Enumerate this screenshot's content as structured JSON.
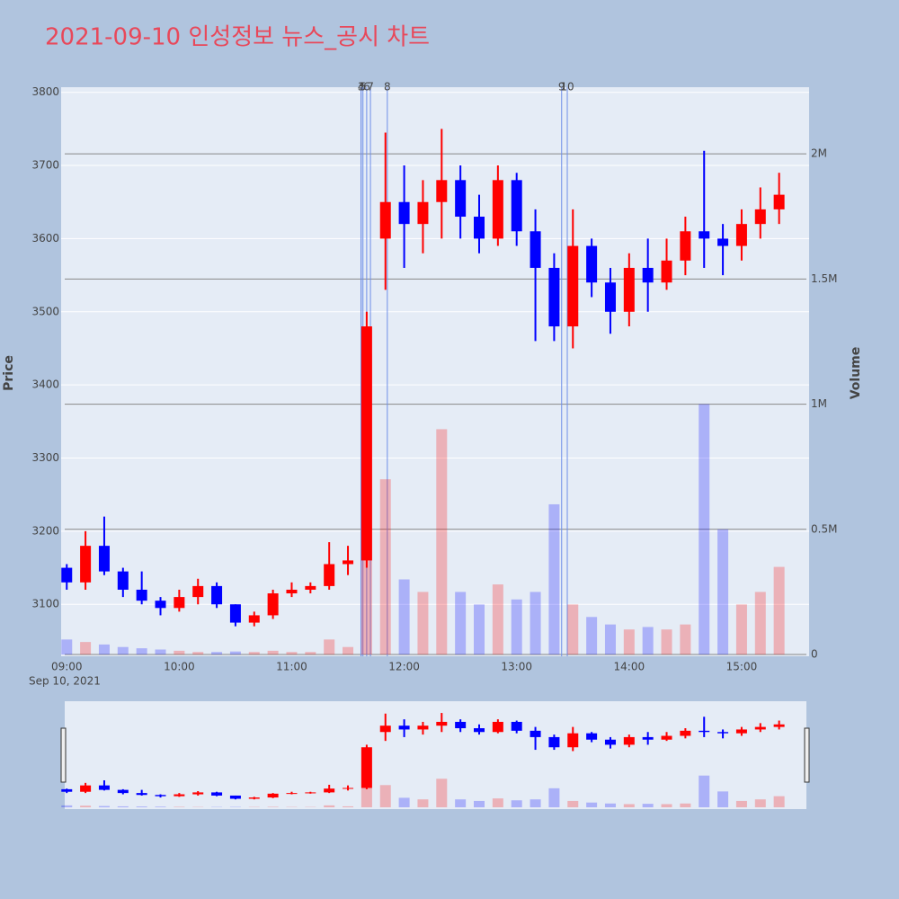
{
  "chart_data": {
    "type": "candlestick",
    "title": "2021-09-10 인성정보 뉴스_공시 차트",
    "y_label": "Price",
    "y2_label": "Volume",
    "x_date_label": "Sep 10, 2021",
    "x": [
      "2021-09-10 09:00",
      "2021-09-10 09:10",
      "2021-09-10 09:20",
      "2021-09-10 09:30",
      "2021-09-10 09:40",
      "2021-09-10 09:50",
      "2021-09-10 10:00",
      "2021-09-10 10:10",
      "2021-09-10 10:20",
      "2021-09-10 10:30",
      "2021-09-10 10:40",
      "2021-09-10 10:50",
      "2021-09-10 11:00",
      "2021-09-10 11:10",
      "2021-09-10 11:20",
      "2021-09-10 11:30",
      "2021-09-10 11:40",
      "2021-09-10 11:50",
      "2021-09-10 12:00",
      "2021-09-10 12:10",
      "2021-09-10 12:20",
      "2021-09-10 12:30",
      "2021-09-10 12:40",
      "2021-09-10 12:50",
      "2021-09-10 13:00",
      "2021-09-10 13:10",
      "2021-09-10 13:20",
      "2021-09-10 13:30",
      "2021-09-10 13:40",
      "2021-09-10 13:50",
      "2021-09-10 14:00",
      "2021-09-10 14:10",
      "2021-09-10 14:20",
      "2021-09-10 14:30",
      "2021-09-10 14:40",
      "2021-09-10 14:50",
      "2021-09-10 15:00",
      "2021-09-10 15:10",
      "2021-09-10 15:20"
    ],
    "open": [
      3150,
      3130,
      3180,
      3145,
      3120,
      3105,
      3095,
      3110,
      3125,
      3100,
      3075,
      3085,
      3115,
      3120,
      3125,
      3155,
      3160,
      3600,
      3650,
      3620,
      3650,
      3680,
      3630,
      3600,
      3680,
      3610,
      3560,
      3480,
      3590,
      3540,
      3500,
      3560,
      3540,
      3570,
      3610,
      3600,
      3590,
      3620,
      3640
    ],
    "high": [
      3155,
      3200,
      3220,
      3150,
      3145,
      3110,
      3120,
      3135,
      3130,
      3100,
      3090,
      3120,
      3130,
      3130,
      3185,
      3180,
      3500,
      3745,
      3700,
      3680,
      3750,
      3700,
      3660,
      3700,
      3690,
      3640,
      3580,
      3640,
      3600,
      3560,
      3580,
      3600,
      3600,
      3630,
      3720,
      3620,
      3640,
      3670,
      3690
    ],
    "low": [
      3120,
      3120,
      3140,
      3110,
      3100,
      3085,
      3090,
      3100,
      3095,
      3070,
      3070,
      3080,
      3110,
      3115,
      3120,
      3140,
      3150,
      3530,
      3560,
      3580,
      3600,
      3600,
      3580,
      3590,
      3590,
      3460,
      3460,
      3450,
      3520,
      3470,
      3480,
      3500,
      3530,
      3550,
      3560,
      3550,
      3570,
      3600,
      3620
    ],
    "close": [
      3130,
      3180,
      3145,
      3120,
      3105,
      3095,
      3110,
      3125,
      3100,
      3075,
      3085,
      3115,
      3120,
      3125,
      3155,
      3160,
      3480,
      3650,
      3620,
      3650,
      3680,
      3630,
      3600,
      3680,
      3610,
      3560,
      3480,
      3590,
      3540,
      3500,
      3560,
      3540,
      3570,
      3610,
      3600,
      3590,
      3620,
      3640,
      3660
    ],
    "volume": [
      60000,
      50000,
      40000,
      30000,
      25000,
      20000,
      15000,
      10000,
      10000,
      12000,
      10000,
      15000,
      10000,
      10000,
      60000,
      30000,
      1200000,
      700000,
      300000,
      250000,
      900000,
      250000,
      200000,
      280000,
      220000,
      250000,
      600000,
      200000,
      150000,
      120000,
      100000,
      110000,
      100000,
      120000,
      1000000,
      500000,
      200000,
      250000,
      350000
    ],
    "increasing_color": "#ff0000",
    "decreasing_color": "#0000ff",
    "ylim": [
      3029,
      3807
    ],
    "yticks": [
      3100,
      3200,
      3300,
      3400,
      3500,
      3600,
      3700,
      3800
    ],
    "y2lim": [
      -7000,
      2266000
    ],
    "y2ticks": [
      0,
      {
        "value": 500000,
        "label": "0.5M"
      },
      {
        "value": 1000000,
        "label": "1M"
      },
      {
        "value": 1500000,
        "label": "1.5M"
      },
      {
        "value": 2000000,
        "label": "2M"
      }
    ],
    "xlim": [
      "2021-09-10 08:57",
      "2021-09-10 15:36"
    ],
    "xticks": [
      {
        "value": "2021-09-10 09:00",
        "label": "09:00"
      },
      {
        "value": "2021-09-10 10:00",
        "label": "10:00"
      },
      {
        "value": "2021-09-10 11:00",
        "label": "11:00"
      },
      {
        "value": "2021-09-10 12:00",
        "label": "12:00"
      },
      {
        "value": "2021-09-10 13:00",
        "label": "13:00"
      },
      {
        "value": "2021-09-10 14:00",
        "label": "14:00"
      },
      {
        "value": "2021-09-10 15:00",
        "label": "15:00"
      }
    ],
    "events": [
      {
        "x": "2021-09-10 11:37",
        "label": "3"
      },
      {
        "x": "2021-09-10 11:37",
        "label": "4"
      },
      {
        "x": "2021-09-10 11:38",
        "label": "5"
      },
      {
        "x": "2021-09-10 11:40",
        "label": "6"
      },
      {
        "x": "2021-09-10 11:42",
        "label": "7"
      },
      {
        "x": "2021-09-10 11:51",
        "label": "8"
      },
      {
        "x": "2021-09-10 13:24",
        "label": "9"
      },
      {
        "x": "2021-09-10 13:27",
        "label": "10"
      }
    ],
    "grid": true
  }
}
